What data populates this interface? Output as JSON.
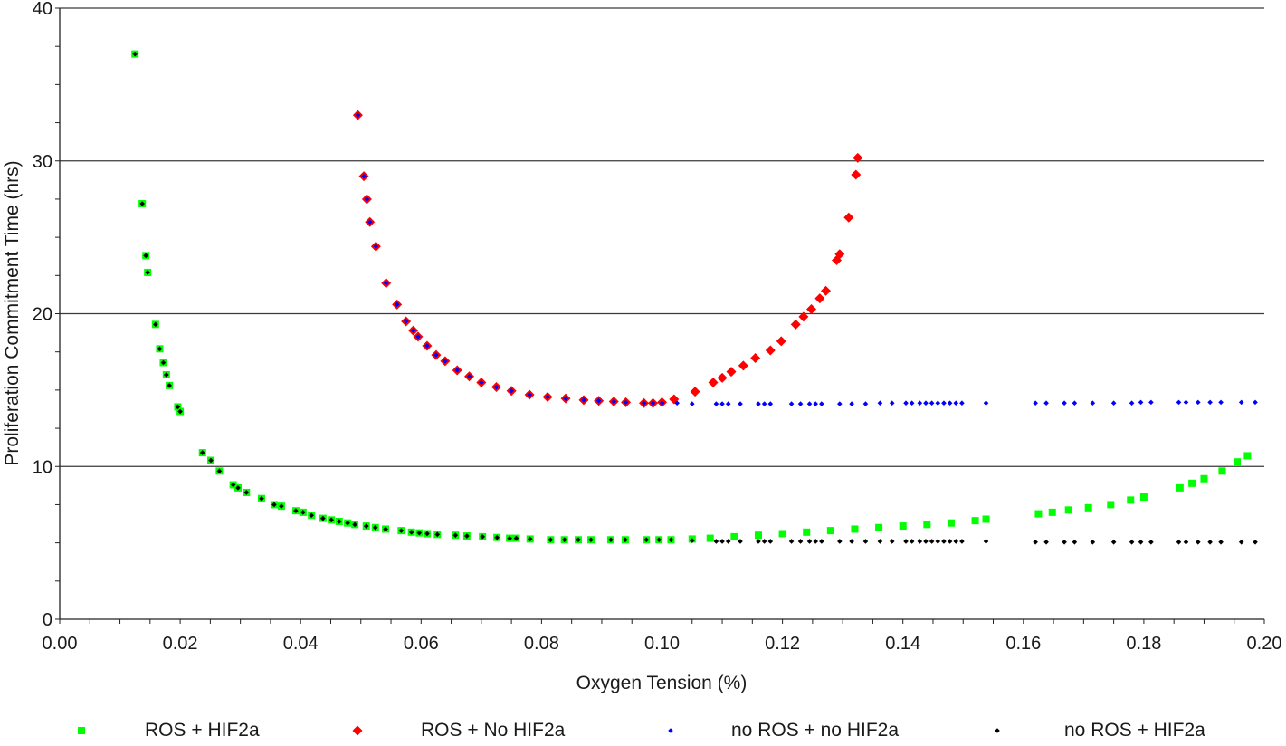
{
  "chart_data": {
    "type": "scatter",
    "title": "",
    "xlabel": "Oxygen Tension (%)",
    "ylabel": "Proliferation Commitment Time (hrs)",
    "xlim": [
      0.0,
      0.2
    ],
    "ylim": [
      0,
      40
    ],
    "x_tick_labels": [
      "0.00",
      "0.02",
      "0.04",
      "0.06",
      "0.08",
      "0.10",
      "0.12",
      "0.14",
      "0.16",
      "0.18",
      "0.20"
    ],
    "y_tick_labels": [
      "0",
      "10",
      "20",
      "30",
      "40"
    ],
    "x_ticks": [
      0.0,
      0.02,
      0.04,
      0.06,
      0.08,
      0.1,
      0.12,
      0.14,
      0.16,
      0.18,
      0.2
    ],
    "y_ticks": [
      0,
      10,
      20,
      30,
      40
    ],
    "grid": "horizontal",
    "legend_position": "bottom",
    "series": [
      {
        "name": "ROS + HIF2a",
        "color": "#00ff00",
        "marker": "square",
        "x": [
          0.0125,
          0.0137,
          0.0143,
          0.0146,
          0.0159,
          0.0166,
          0.0172,
          0.0177,
          0.0182,
          0.0196,
          0.02,
          0.0237,
          0.0251,
          0.0265,
          0.0288,
          0.0296,
          0.031,
          0.0335,
          0.0356,
          0.0368,
          0.0392,
          0.0404,
          0.0418,
          0.0437,
          0.0451,
          0.0464,
          0.0478,
          0.049,
          0.0509,
          0.0524,
          0.0541,
          0.0567,
          0.0584,
          0.0597,
          0.061,
          0.0627,
          0.0657,
          0.0676,
          0.0702,
          0.0726,
          0.0747,
          0.0758,
          0.0781,
          0.0815,
          0.0838,
          0.0861,
          0.0882,
          0.0915,
          0.0939,
          0.0974,
          0.0995,
          0.1015,
          0.105,
          0.108,
          0.112,
          0.116,
          0.12,
          0.124,
          0.128,
          0.132,
          0.136,
          0.14,
          0.144,
          0.148,
          0.152,
          0.1538,
          0.1625,
          0.1648,
          0.1675,
          0.1708,
          0.1745,
          0.1778,
          0.18,
          0.186,
          0.188,
          0.19,
          0.193,
          0.1955,
          0.1972
        ],
        "y": [
          37.0,
          27.2,
          23.8,
          22.7,
          19.3,
          17.7,
          16.8,
          16.0,
          15.3,
          13.9,
          13.6,
          10.9,
          10.4,
          9.7,
          8.8,
          8.6,
          8.3,
          7.9,
          7.5,
          7.4,
          7.1,
          7.0,
          6.8,
          6.6,
          6.5,
          6.4,
          6.3,
          6.2,
          6.1,
          6.0,
          5.9,
          5.8,
          5.7,
          5.65,
          5.6,
          5.55,
          5.5,
          5.45,
          5.4,
          5.35,
          5.3,
          5.3,
          5.25,
          5.2,
          5.2,
          5.2,
          5.2,
          5.2,
          5.2,
          5.2,
          5.2,
          5.2,
          5.25,
          5.3,
          5.4,
          5.5,
          5.6,
          5.7,
          5.8,
          5.9,
          6.0,
          6.1,
          6.2,
          6.3,
          6.45,
          6.55,
          6.9,
          7.0,
          7.15,
          7.3,
          7.5,
          7.8,
          8.0,
          8.6,
          8.9,
          9.2,
          9.7,
          10.3,
          10.7
        ]
      },
      {
        "name": "ROS + No HIF2a",
        "color": "#ff0000",
        "marker": "diamond",
        "x": [
          0.0495,
          0.0505,
          0.051,
          0.0515,
          0.0525,
          0.0542,
          0.056,
          0.0575,
          0.0587,
          0.0595,
          0.061,
          0.0625,
          0.064,
          0.066,
          0.068,
          0.07,
          0.0725,
          0.075,
          0.078,
          0.081,
          0.084,
          0.087,
          0.0895,
          0.092,
          0.094,
          0.097,
          0.0985,
          0.1,
          0.102,
          0.1055,
          0.1085,
          0.11,
          0.1115,
          0.1135,
          0.1155,
          0.118,
          0.1198,
          0.1222,
          0.1235,
          0.1248,
          0.1262,
          0.1272,
          0.129,
          0.1295,
          0.131,
          0.1322,
          0.1325
        ],
        "y": [
          33.0,
          29.0,
          27.5,
          26.0,
          24.4,
          22.0,
          20.6,
          19.5,
          18.9,
          18.5,
          17.9,
          17.3,
          16.9,
          16.3,
          15.9,
          15.5,
          15.2,
          14.95,
          14.7,
          14.55,
          14.45,
          14.35,
          14.3,
          14.25,
          14.2,
          14.15,
          14.15,
          14.2,
          14.4,
          14.9,
          15.5,
          15.8,
          16.2,
          16.6,
          17.1,
          17.6,
          18.2,
          19.3,
          19.8,
          20.3,
          21.0,
          21.5,
          23.5,
          23.9,
          26.3,
          29.1,
          30.2
        ]
      },
      {
        "name": "no ROS + no HIF2a",
        "color": "#0000ff",
        "marker": "diamond-small",
        "x": [
          0.0495,
          0.0505,
          0.051,
          0.0515,
          0.0525,
          0.0542,
          0.056,
          0.0575,
          0.0587,
          0.0595,
          0.061,
          0.0625,
          0.064,
          0.066,
          0.068,
          0.07,
          0.0725,
          0.075,
          0.078,
          0.081,
          0.084,
          0.087,
          0.0895,
          0.092,
          0.094,
          0.097,
          0.0985,
          0.1,
          0.1025,
          0.105,
          0.109,
          0.11,
          0.111,
          0.113,
          0.116,
          0.117,
          0.118,
          0.1215,
          0.123,
          0.1245,
          0.1255,
          0.1265,
          0.1295,
          0.1315,
          0.1338,
          0.1362,
          0.1382,
          0.1405,
          0.1415,
          0.1428,
          0.1438,
          0.1448,
          0.1458,
          0.1468,
          0.1478,
          0.1488,
          0.1498,
          0.1538,
          0.162,
          0.1638,
          0.1668,
          0.1685,
          0.1715,
          0.175,
          0.178,
          0.1795,
          0.1812,
          0.1858,
          0.187,
          0.189,
          0.191,
          0.1928,
          0.1962,
          0.1985
        ],
        "y": [
          33.0,
          29.0,
          27.5,
          26.0,
          24.4,
          22.0,
          20.6,
          19.5,
          18.9,
          18.5,
          17.9,
          17.3,
          16.9,
          16.3,
          15.9,
          15.5,
          15.2,
          14.95,
          14.7,
          14.55,
          14.45,
          14.35,
          14.3,
          14.25,
          14.2,
          14.15,
          14.15,
          14.15,
          14.15,
          14.1,
          14.1,
          14.1,
          14.1,
          14.1,
          14.1,
          14.1,
          14.1,
          14.1,
          14.1,
          14.1,
          14.1,
          14.1,
          14.1,
          14.1,
          14.1,
          14.15,
          14.15,
          14.15,
          14.15,
          14.15,
          14.15,
          14.15,
          14.15,
          14.15,
          14.15,
          14.15,
          14.15,
          14.15,
          14.15,
          14.15,
          14.15,
          14.15,
          14.15,
          14.15,
          14.15,
          14.2,
          14.2,
          14.2,
          14.2,
          14.2,
          14.2,
          14.2,
          14.2,
          14.2
        ]
      },
      {
        "name": "no ROS + HIF2a",
        "color": "#000000",
        "marker": "diamond-small",
        "x": [
          0.0125,
          0.0137,
          0.0143,
          0.0146,
          0.0159,
          0.0166,
          0.0172,
          0.0177,
          0.0182,
          0.0196,
          0.02,
          0.0237,
          0.0251,
          0.0265,
          0.0288,
          0.0296,
          0.031,
          0.0335,
          0.0356,
          0.0368,
          0.0392,
          0.0404,
          0.0418,
          0.0437,
          0.0451,
          0.0464,
          0.0478,
          0.049,
          0.0509,
          0.0524,
          0.0541,
          0.0567,
          0.0584,
          0.0597,
          0.061,
          0.0627,
          0.0657,
          0.0676,
          0.0702,
          0.0726,
          0.0747,
          0.0758,
          0.0781,
          0.0815,
          0.0838,
          0.0861,
          0.0882,
          0.0915,
          0.0939,
          0.0974,
          0.0995,
          0.1015,
          0.105,
          0.109,
          0.11,
          0.111,
          0.113,
          0.116,
          0.117,
          0.118,
          0.1215,
          0.123,
          0.1245,
          0.1255,
          0.1265,
          0.1295,
          0.1315,
          0.1338,
          0.1362,
          0.1382,
          0.1405,
          0.1415,
          0.1428,
          0.1438,
          0.1448,
          0.1458,
          0.1468,
          0.1478,
          0.1488,
          0.1498,
          0.1538,
          0.162,
          0.1638,
          0.1668,
          0.1685,
          0.1715,
          0.175,
          0.178,
          0.1795,
          0.1812,
          0.1858,
          0.187,
          0.189,
          0.191,
          0.1928,
          0.1962,
          0.1985
        ],
        "y": [
          37.0,
          27.2,
          23.8,
          22.7,
          19.3,
          17.7,
          16.8,
          16.0,
          15.3,
          13.9,
          13.6,
          10.9,
          10.4,
          9.7,
          8.8,
          8.6,
          8.3,
          7.9,
          7.5,
          7.4,
          7.1,
          7.0,
          6.8,
          6.6,
          6.5,
          6.4,
          6.3,
          6.2,
          6.1,
          6.0,
          5.9,
          5.8,
          5.7,
          5.65,
          5.6,
          5.55,
          5.5,
          5.45,
          5.4,
          5.35,
          5.3,
          5.3,
          5.25,
          5.2,
          5.2,
          5.2,
          5.2,
          5.2,
          5.2,
          5.2,
          5.2,
          5.2,
          5.15,
          5.1,
          5.1,
          5.1,
          5.1,
          5.1,
          5.1,
          5.1,
          5.1,
          5.1,
          5.1,
          5.1,
          5.1,
          5.1,
          5.1,
          5.1,
          5.1,
          5.1,
          5.1,
          5.1,
          5.1,
          5.1,
          5.1,
          5.1,
          5.1,
          5.1,
          5.1,
          5.1,
          5.1,
          5.05,
          5.05,
          5.05,
          5.05,
          5.05,
          5.05,
          5.05,
          5.05,
          5.05,
          5.05,
          5.05,
          5.05,
          5.05,
          5.05,
          5.05,
          5.05
        ]
      }
    ]
  }
}
